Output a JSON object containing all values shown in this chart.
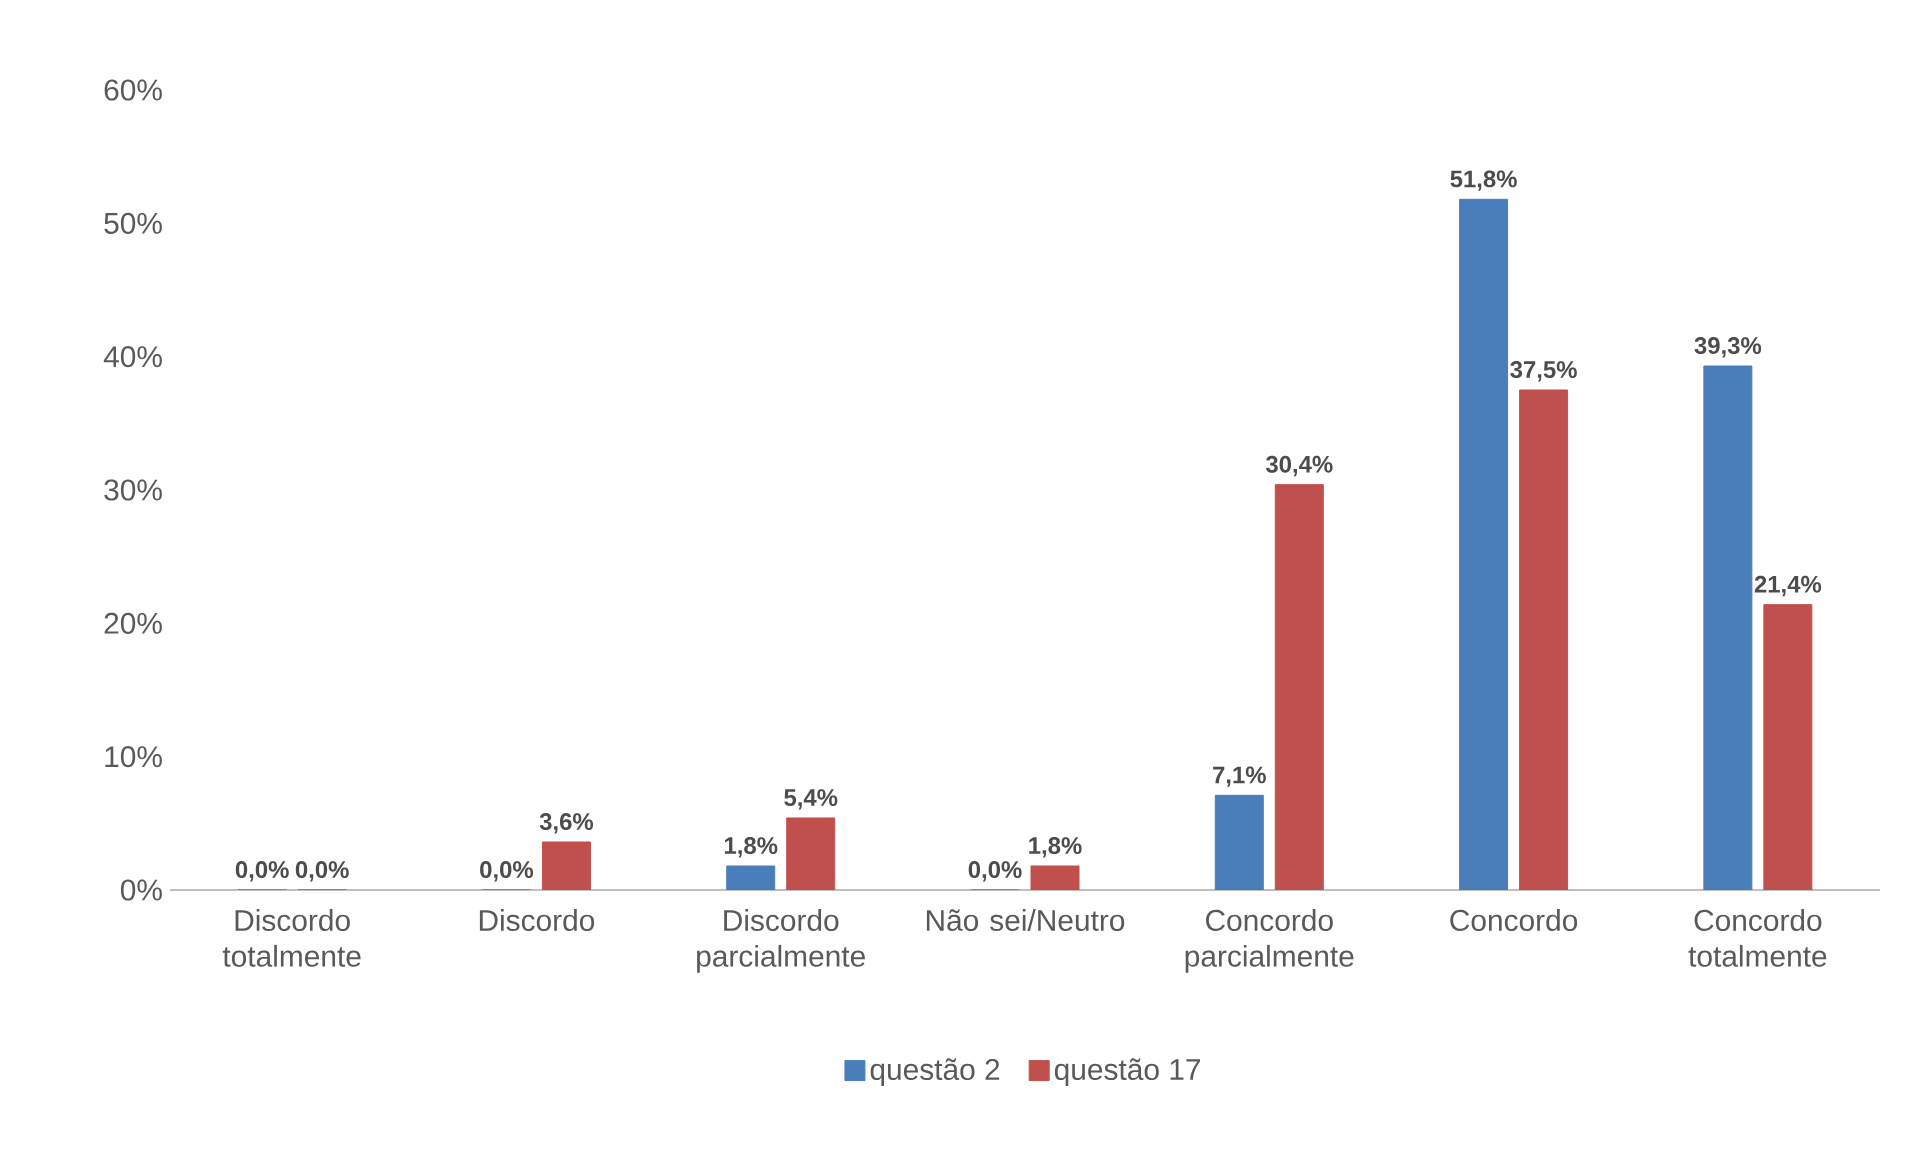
{
  "chart_data": {
    "type": "bar",
    "categories": [
      "Discordo totalmente",
      "Discordo",
      "Discordo parcialmente",
      "Não sei/Neutro",
      "Concordo parcialmente",
      "Concordo",
      "Concordo totalmente"
    ],
    "series": [
      {
        "name": "questão 2",
        "color": "#4a7ebb",
        "values": [
          0,
          0,
          1.8,
          0,
          7.1,
          51.8,
          39.3
        ],
        "value_labels": [
          "0,0%",
          "0,0%",
          "1,8%",
          "0,0%",
          "7,1%",
          "51,8%",
          "39,3%"
        ]
      },
      {
        "name": "questão 17",
        "color": "#c0504d",
        "values": [
          0,
          3.6,
          5.4,
          1.8,
          30.4,
          37.5,
          21.4
        ],
        "value_labels": [
          "0,0%",
          "3,6%",
          "5,4%",
          "1,8%",
          "30,4%",
          "37,5%",
          "21,4%"
        ]
      }
    ],
    "ylim": [
      0,
      60
    ],
    "yticks": [
      {
        "value": 0,
        "label": "0%"
      },
      {
        "value": 10,
        "label": "10%"
      },
      {
        "value": 20,
        "label": "20%"
      },
      {
        "value": 30,
        "label": "30%"
      },
      {
        "value": 40,
        "label": "40%"
      },
      {
        "value": 50,
        "label": "50%"
      },
      {
        "value": 60,
        "label": "60%"
      }
    ],
    "grid": false,
    "legend": "bottom"
  }
}
